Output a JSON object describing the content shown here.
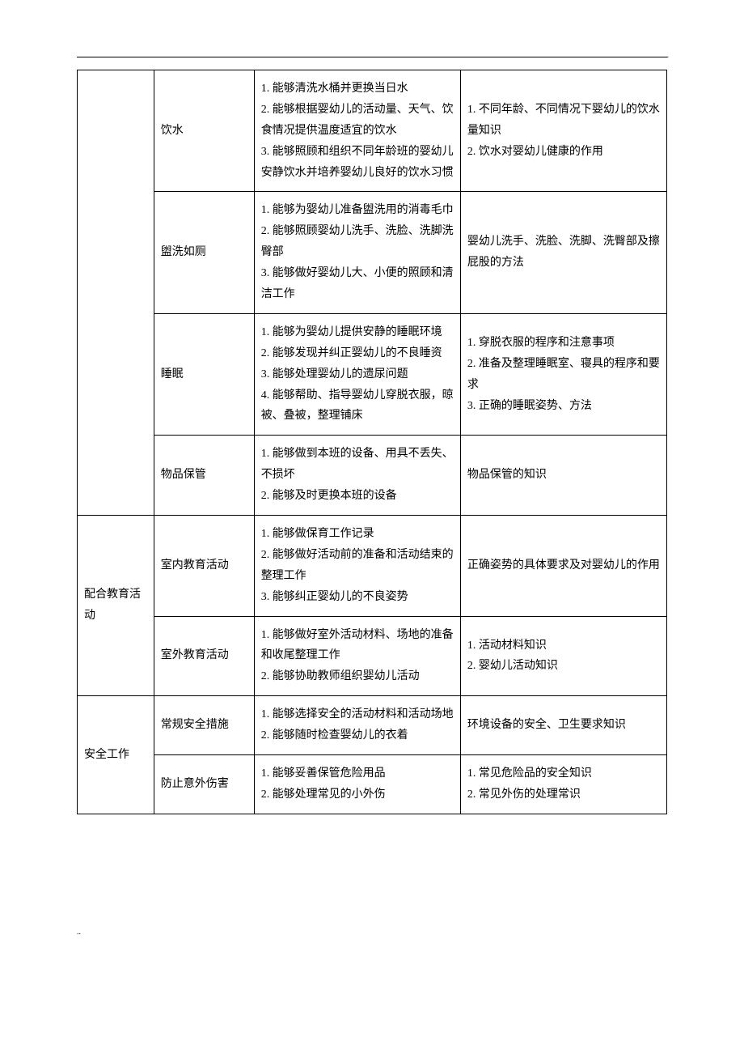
{
  "table": {
    "type": "table",
    "columns": [
      "category",
      "item",
      "skills",
      "knowledge"
    ],
    "col_widths": [
      "13%",
      "17%",
      "35%",
      "35%"
    ],
    "border_color": "#000000",
    "background_color": "#ffffff",
    "font_family": "SimSun",
    "font_size": 14,
    "line_height": 1.85,
    "sections": [
      {
        "category": "",
        "rowspan": 4,
        "rows": [
          {
            "item": "饮水",
            "skills": "1. 能够清洗水桶并更换当日水\n2. 能够根据婴幼儿的活动量、天气、饮食情况提供温度适宜的饮水\n3. 能够照顾和组织不同年龄班的婴幼儿安静饮水并培养婴幼儿良好的饮水习惯",
            "knowledge": "1. 不同年龄、不同情况下婴幼儿的饮水量知识\n2. 饮水对婴幼儿健康的作用"
          },
          {
            "item": "盥洗如厕",
            "skills": "1. 能够为婴幼儿准备盥洗用的消毒毛巾\n2. 能够照顾婴幼儿洗手、洗脸、洗脚洗臀部\n3. 能够做好婴幼儿大、小便的照顾和清洁工作",
            "knowledge": "婴幼儿洗手、洗脸、洗脚、洗臀部及擦屁股的方法"
          },
          {
            "item": "睡眠",
            "skills": "1. 能够为婴幼儿提供安静的睡眠环境\n2. 能够发现并纠正婴幼儿的不良睡资\n3. 能够处理婴幼儿的遗尿问题\n4. 能够帮助、指导婴幼儿穿脱衣服，晾被、叠被，整理铺床",
            "knowledge": "1. 穿脱衣服的程序和注意事项\n2. 准备及整理睡眠室、寝具的程序和要求\n3. 正确的睡眠姿势、方法"
          },
          {
            "item": "物品保管",
            "skills": "1. 能够做到本班的设备、用具不丢失、不损坏\n2. 能够及时更换本班的设备",
            "knowledge": "物品保管的知识"
          }
        ]
      },
      {
        "category": "配合教育活动",
        "rowspan": 2,
        "rows": [
          {
            "item": "室内教育活动",
            "skills": "1. 能够做保育工作记录\n2. 能够做好活动前的准备和活动结束的整理工作\n3. 能够纠正婴幼儿的不良姿势",
            "knowledge": "正确姿势的具体要求及对婴幼儿的作用"
          },
          {
            "item": "室外教育活动",
            "skills": "1. 能够做好室外活动材料、场地的准备和收尾整理工作\n2. 能够协助教师组织婴幼儿活动",
            "knowledge": "1. 活动材料知识\n2. 婴幼儿活动知识"
          }
        ]
      },
      {
        "category": "安全工作",
        "rowspan": 2,
        "rows": [
          {
            "item": "常规安全措施",
            "skills": "1. 能够选择安全的活动材料和活动场地\n2. 能够随时检查婴幼儿的衣着",
            "knowledge": "环境设备的安全、卫生要求知识"
          },
          {
            "item": "防止意外伤害",
            "skills": "1. 能够妥善保管危险用品\n2. 能够处理常见的小外伤",
            "knowledge": "1. 常见危险品的安全知识\n2. 常见外伤的处理常识"
          }
        ]
      }
    ]
  },
  "decor": {
    "top_dot": ".",
    "bottom_dots": ".."
  }
}
